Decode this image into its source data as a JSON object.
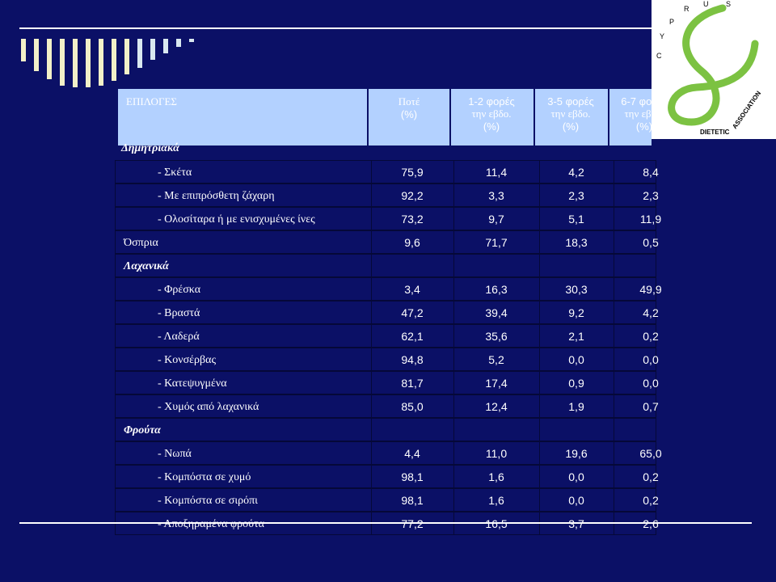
{
  "logo": {
    "text": "CYPRUS DIETETIC ASSOCIATION",
    "accent": "#7cc242"
  },
  "header": {
    "options": "ΕΠΙΛΟΓΕΣ",
    "never_l1": "Ποτέ",
    "never_l2": "(%)",
    "c1_l1": "1-2 φορές",
    "c1_l2": "την εβδο.",
    "c1_l3": "(%)",
    "c2_l1": "3-5 φορές",
    "c2_l2": "την εβδο.",
    "c2_l3": "(%)",
    "c3_l1": "6-7 φορές",
    "c3_l2": "την εβδο.",
    "c3_l3": "(%)"
  },
  "first_category": "Δημητριακά",
  "rows": [
    {
      "label": "- Σκέτα",
      "values": [
        "75,9",
        "11,4",
        "4,2",
        "8,4"
      ]
    },
    {
      "label": "- Με επιπρόσθετη ζάχαρη",
      "values": [
        "92,2",
        "3,3",
        "2,3",
        "2,3"
      ]
    },
    {
      "label": "- Ολοσίταρα ή με ενισχυμένες ίνες",
      "values": [
        "73,2",
        "9,7",
        "5,1",
        "11,9"
      ]
    },
    {
      "label": "Όσπρια",
      "values": [
        "9,6",
        "71,7",
        "18,3",
        "0,5"
      ]
    },
    {
      "label": "Λαχανικά",
      "values": [
        "",
        "",
        "",
        ""
      ]
    },
    {
      "label": "- Φρέσκα",
      "values": [
        "3,4",
        "16,3",
        "30,3",
        "49,9"
      ]
    },
    {
      "label": "- Βραστά",
      "values": [
        "47,2",
        "39,4",
        "9,2",
        "4,2"
      ]
    },
    {
      "label": "- Λαδερά",
      "values": [
        "62,1",
        "35,6",
        "2,1",
        "0,2"
      ]
    },
    {
      "label": "- Κονσέρβας",
      "values": [
        "94,8",
        "5,2",
        "0,0",
        "0,0"
      ]
    },
    {
      "label": "- Κατεψυγμένα",
      "values": [
        "81,7",
        "17,4",
        "0,9",
        "0,0"
      ]
    },
    {
      "label": "- Χυμός από λαχανικά",
      "values": [
        "85,0",
        "12,4",
        "1,9",
        "0,7"
      ]
    },
    {
      "label": "Φρούτα",
      "values": [
        "",
        "",
        "",
        ""
      ]
    },
    {
      "label": "- Νωπά",
      "values": [
        "4,4",
        "11,0",
        "19,6",
        "65,0"
      ]
    },
    {
      "label": "- Κομπόστα σε χυμό",
      "values": [
        "98,1",
        "1,6",
        "0,0",
        "0,2"
      ]
    },
    {
      "label": "- Κομπόστα σε σιρόπι",
      "values": [
        "98,1",
        "1,6",
        "0,0",
        "0,2"
      ]
    },
    {
      "label": "- Αποξηραμένα φρούτα",
      "values": [
        "77,2",
        "16,5",
        "3,7",
        "2,6"
      ]
    }
  ]
}
